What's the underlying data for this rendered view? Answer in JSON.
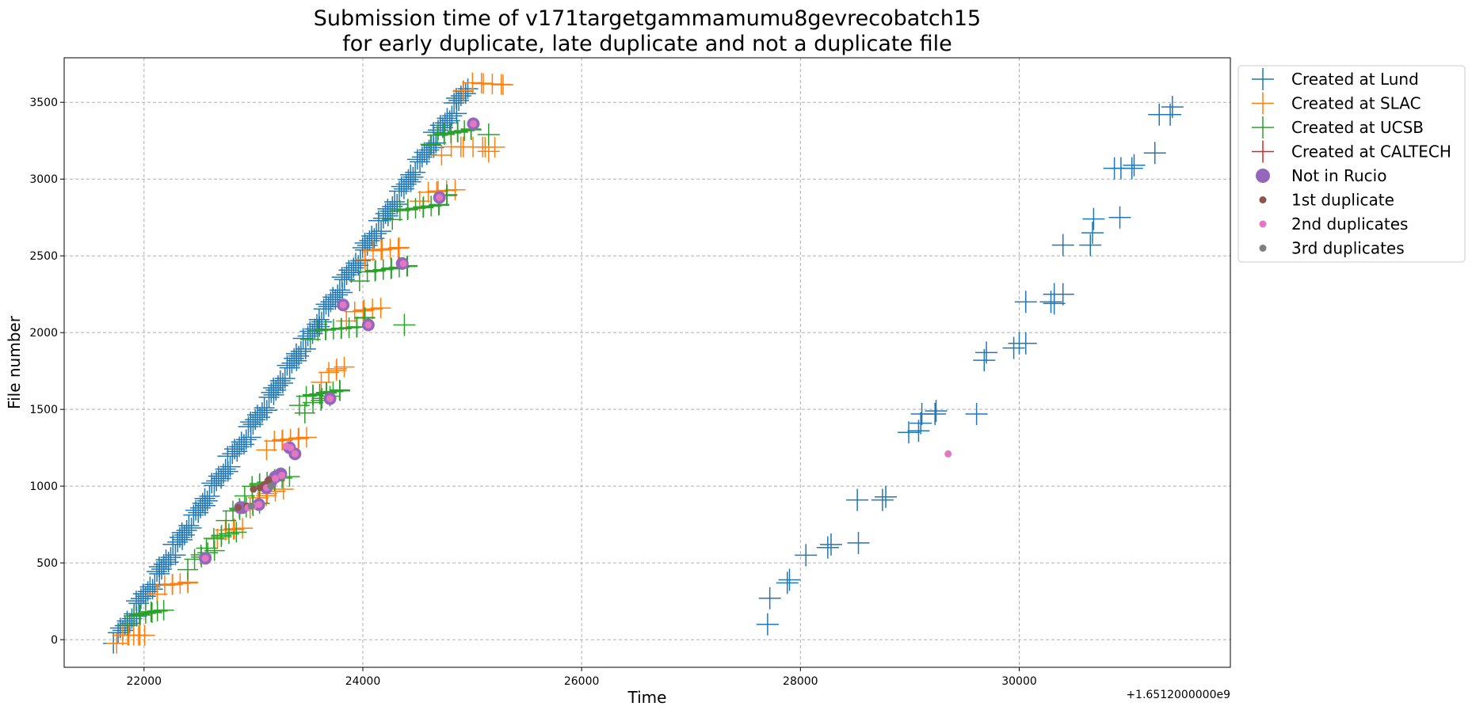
{
  "chart_data": {
    "type": "scatter",
    "title": "Submission time of v171targetgammamumu8gevrecobatch15",
    "subtitle": "for early duplicate, late duplicate and not a duplicate file",
    "xlabel": "Time",
    "ylabel": "File number",
    "x_offset_label": "+1.6512000000e9",
    "xlim": [
      21270,
      31930
    ],
    "ylim": [
      -180,
      3790
    ],
    "x_ticks": [
      22000,
      24000,
      26000,
      28000,
      30000
    ],
    "y_ticks": [
      0,
      500,
      1000,
      1500,
      2000,
      2500,
      3000,
      3500
    ],
    "grid": true,
    "legend_position": "outside-upper-right",
    "colors": {
      "lund": "#1f77b4",
      "slac": "#ff7f0e",
      "ucsb": "#2ca02c",
      "caltech": "#d62728",
      "not_in_rucio": "#9467bd",
      "dup1": "#8c564b",
      "dup2": "#e377c2",
      "dup3": "#7f7f7f"
    },
    "series": [
      {
        "name": "Created at Lund",
        "color": "#1f77b4",
        "marker": "plus",
        "segments": [
          {
            "x0": 21750,
            "x1": 24960,
            "y0": 0,
            "y1": 3600,
            "n": 170
          }
        ],
        "x": [
          27700,
          27720,
          27880,
          27900,
          28050,
          28250,
          28280,
          28530,
          28520,
          28750,
          28780,
          28990,
          29080,
          29100,
          29110,
          29230,
          29240,
          29610,
          29680,
          29700,
          29950,
          30000,
          30060,
          30060,
          30290,
          30320,
          30320,
          30400,
          30400,
          30650,
          30670,
          30680,
          30870,
          30920,
          30930,
          31030,
          31050,
          31240,
          31280,
          31380,
          31400
        ],
        "y": [
          100,
          270,
          370,
          390,
          550,
          600,
          620,
          630,
          910,
          910,
          930,
          1350,
          1360,
          1410,
          1470,
          1470,
          1490,
          1470,
          1820,
          1870,
          1900,
          1930,
          1930,
          2200,
          2200,
          2250,
          2190,
          2250,
          2570,
          2570,
          2650,
          2740,
          3070,
          2750,
          3070,
          3070,
          3090,
          3170,
          3420,
          3420,
          3470
        ]
      },
      {
        "name": "Created at SLAC",
        "color": "#ff7f0e",
        "marker": "plus",
        "segments": [
          {
            "x0": 21780,
            "x1": 22000,
            "y0": 0,
            "y1": 40,
            "n": 8
          },
          {
            "x0": 22150,
            "x1": 22420,
            "y0": 320,
            "y1": 380,
            "n": 7
          },
          {
            "x0": 22700,
            "x1": 22900,
            "y0": 680,
            "y1": 720,
            "n": 5
          },
          {
            "x0": 23000,
            "x1": 23250,
            "y0": 880,
            "y1": 980,
            "n": 6
          },
          {
            "x0": 23150,
            "x1": 23480,
            "y0": 1260,
            "y1": 1330,
            "n": 8
          },
          {
            "x0": 23650,
            "x1": 23830,
            "y0": 1700,
            "y1": 1770,
            "n": 5
          },
          {
            "x0": 23880,
            "x1": 24140,
            "y0": 2100,
            "y1": 2160,
            "n": 6
          },
          {
            "x0": 24050,
            "x1": 24350,
            "y0": 2500,
            "y1": 2560,
            "n": 7
          },
          {
            "x0": 24550,
            "x1": 24820,
            "y0": 2880,
            "y1": 2930,
            "n": 6
          },
          {
            "x0": 24750,
            "x1": 25200,
            "y0": 3180,
            "y1": 3220,
            "n": 8
          },
          {
            "x0": 24950,
            "x1": 25300,
            "y0": 3600,
            "y1": 3620,
            "n": 7
          }
        ],
        "x": [
          25150
        ],
        "y": [
          3180
        ]
      },
      {
        "name": "Created at UCSB",
        "color": "#2ca02c",
        "marker": "plus",
        "segments": [
          {
            "x0": 21880,
            "x1": 22150,
            "y0": 120,
            "y1": 210,
            "n": 9
          },
          {
            "x0": 22430,
            "x1": 22620,
            "y0": 480,
            "y1": 580,
            "n": 6
          },
          {
            "x0": 22600,
            "x1": 22820,
            "y0": 620,
            "y1": 700,
            "n": 6
          },
          {
            "x0": 22780,
            "x1": 23050,
            "y0": 800,
            "y1": 900,
            "n": 8
          },
          {
            "x0": 22950,
            "x1": 23300,
            "y0": 960,
            "y1": 1080,
            "n": 9
          },
          {
            "x0": 23450,
            "x1": 23800,
            "y0": 1550,
            "y1": 1650,
            "n": 10
          },
          {
            "x0": 23500,
            "x1": 23700,
            "y0": 1500,
            "y1": 1580,
            "n": 5
          },
          {
            "x0": 23550,
            "x1": 24050,
            "y0": 1980,
            "y1": 2080,
            "n": 12
          },
          {
            "x0": 24000,
            "x1": 24420,
            "y0": 2360,
            "y1": 2460,
            "n": 10
          },
          {
            "x0": 24300,
            "x1": 24800,
            "y0": 2760,
            "y1": 2880,
            "n": 12
          },
          {
            "x0": 24650,
            "x1": 25000,
            "y0": 3250,
            "y1": 3350,
            "n": 10
          }
        ],
        "x": [
          24380,
          25150
        ],
        "y": [
          2050,
          3290
        ]
      },
      {
        "name": "Created at CALTECH",
        "color": "#d62728",
        "marker": "plus",
        "segments": [],
        "x": [],
        "y": []
      },
      {
        "name": "Not in Rucio",
        "color": "#9467bd",
        "marker": "circle-large",
        "x": [
          22560,
          22880,
          22900,
          23050,
          23120,
          23160,
          23200,
          23250,
          23330,
          23380,
          23700,
          23820,
          24050,
          24360,
          24700,
          25010
        ],
        "y": [
          530,
          860,
          860,
          880,
          990,
          1030,
          1060,
          1080,
          1250,
          1210,
          1570,
          2180,
          2050,
          2450,
          2880,
          3360
        ]
      },
      {
        "name": "1st duplicate",
        "color": "#8c564b",
        "marker": "circle-small",
        "x": [
          22860,
          22940,
          23000,
          23060,
          23100,
          23140,
          23300,
          23340
        ],
        "y": [
          860,
          870,
          980,
          990,
          1010,
          1040,
          1260,
          1250
        ]
      },
      {
        "name": "2nd duplicates",
        "color": "#e377c2",
        "marker": "circle-small",
        "x": [
          22560,
          22950,
          23000,
          23050,
          23120,
          23200,
          23260,
          23300,
          23340,
          23380,
          23700,
          23820,
          24050,
          24370,
          24700,
          25010,
          29350
        ],
        "y": [
          530,
          860,
          870,
          880,
          990,
          1050,
          1070,
          1260,
          1250,
          1210,
          1570,
          2180,
          2050,
          2450,
          2880,
          3360,
          1210
        ]
      },
      {
        "name": "3rd duplicates",
        "color": "#7f7f7f",
        "marker": "circle-small",
        "x": [
          22980,
          23160
        ],
        "y": [
          870,
          1000
        ]
      }
    ]
  }
}
